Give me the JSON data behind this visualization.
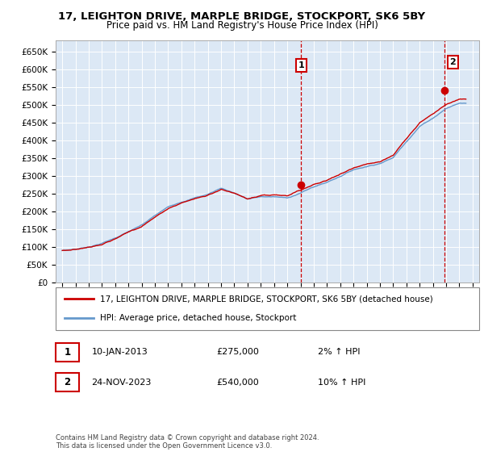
{
  "title": "17, LEIGHTON DRIVE, MARPLE BRIDGE, STOCKPORT, SK6 5BY",
  "subtitle": "Price paid vs. HM Land Registry's House Price Index (HPI)",
  "legend_line1": "17, LEIGHTON DRIVE, MARPLE BRIDGE, STOCKPORT, SK6 5BY (detached house)",
  "legend_line2": "HPI: Average price, detached house, Stockport",
  "annotation1_label": "1",
  "annotation1_date": "10-JAN-2013",
  "annotation1_price": "£275,000",
  "annotation1_hpi": "2% ↑ HPI",
  "annotation2_label": "2",
  "annotation2_date": "24-NOV-2023",
  "annotation2_price": "£540,000",
  "annotation2_hpi": "10% ↑ HPI",
  "footnote": "Contains HM Land Registry data © Crown copyright and database right 2024.\nThis data is licensed under the Open Government Licence v3.0.",
  "hpi_color": "#6699cc",
  "price_color": "#cc0000",
  "sale1_x": 2013.04,
  "sale1_y": 275000,
  "sale2_x": 2023.9,
  "sale2_y": 540000,
  "ylim": [
    0,
    680000
  ],
  "xlim": [
    1994.5,
    2026.5
  ],
  "background_chart": "#dce8f5",
  "background_fig": "#ffffff",
  "grid_color": "#ffffff",
  "yticks": [
    0,
    50000,
    100000,
    150000,
    200000,
    250000,
    300000,
    350000,
    400000,
    450000,
    500000,
    550000,
    600000,
    650000
  ],
  "xticks": [
    1995,
    1996,
    1997,
    1998,
    1999,
    2000,
    2001,
    2002,
    2003,
    2004,
    2005,
    2006,
    2007,
    2008,
    2009,
    2010,
    2011,
    2012,
    2013,
    2014,
    2015,
    2016,
    2017,
    2018,
    2019,
    2020,
    2021,
    2022,
    2023,
    2024,
    2025,
    2026
  ]
}
